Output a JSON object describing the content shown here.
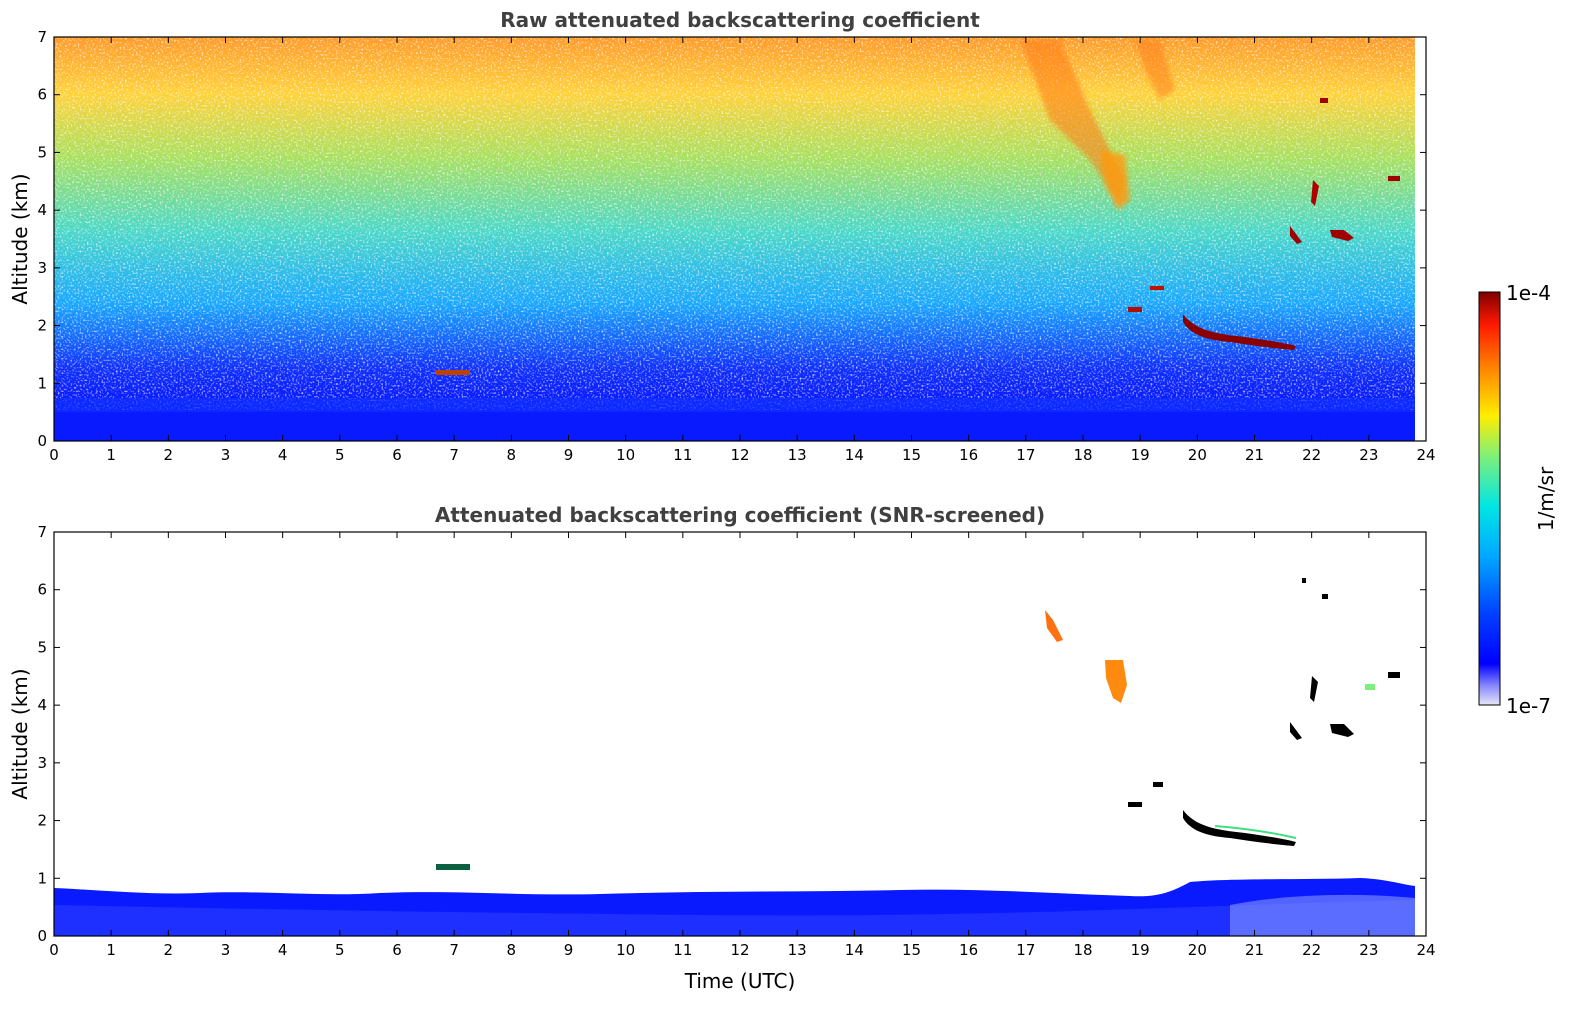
{
  "chart_data": [
    {
      "type": "heatmap",
      "title": "Raw attenuated backscattering coefficient",
      "xlabel": "",
      "ylabel": "Altitude (km)",
      "xlim": [
        0,
        24
      ],
      "ylim": [
        0,
        7
      ],
      "xticks": [
        "0",
        "1",
        "2",
        "3",
        "4",
        "5",
        "6",
        "7",
        "8",
        "9",
        "10",
        "11",
        "12",
        "13",
        "14",
        "15",
        "16",
        "17",
        "18",
        "19",
        "20",
        "21",
        "22",
        "23",
        "24"
      ],
      "yticks": [
        "0",
        "1",
        "2",
        "3",
        "4",
        "5",
        "6",
        "7"
      ],
      "screened": false,
      "features": [
        {
          "kind": "boundary_layer",
          "x": [
            0,
            23.8
          ],
          "y": [
            0,
            0.55
          ],
          "level": 0.06
        },
        {
          "kind": "cloud_layer",
          "x": [
            19.8,
            21.7
          ],
          "y": [
            1.6,
            2.15
          ],
          "level": 1.0
        },
        {
          "kind": "cloud_patch",
          "x": [
            21.7,
            22.7
          ],
          "y": [
            3.4,
            4.5
          ],
          "level": 0.97
        },
        {
          "kind": "fall_streak",
          "x": [
            17.3,
            19.6
          ],
          "y": [
            4.0,
            7.0
          ],
          "level": 0.75
        },
        {
          "kind": "small_cloud",
          "x": [
            6.7,
            7.3
          ],
          "y": [
            1.1,
            1.25
          ],
          "level": 0.8
        }
      ]
    },
    {
      "type": "heatmap",
      "title": "Attenuated backscattering coefficient (SNR-screened)",
      "xlabel": "Time (UTC)",
      "ylabel": "Altitude (km)",
      "xlim": [
        0,
        24
      ],
      "ylim": [
        0,
        7
      ],
      "xticks": [
        "0",
        "1",
        "2",
        "3",
        "4",
        "5",
        "6",
        "7",
        "8",
        "9",
        "10",
        "11",
        "12",
        "13",
        "14",
        "15",
        "16",
        "17",
        "18",
        "19",
        "20",
        "21",
        "22",
        "23",
        "24"
      ],
      "yticks": [
        "0",
        "1",
        "2",
        "3",
        "4",
        "5",
        "6",
        "7"
      ],
      "screened": true,
      "features": [
        {
          "kind": "boundary_layer",
          "x": [
            0,
            23.8
          ],
          "y": [
            0,
            0.8
          ],
          "level": 0.06
        },
        {
          "kind": "cloud_layer",
          "x": [
            19.8,
            21.7
          ],
          "y": [
            1.6,
            2.15
          ],
          "level": "saturated"
        },
        {
          "kind": "virga",
          "x": [
            18.5,
            18.7
          ],
          "y": [
            4.05,
            4.8
          ],
          "level": 0.78
        },
        {
          "kind": "virga",
          "x": [
            17.4,
            17.7
          ],
          "y": [
            5.1,
            5.7
          ],
          "level": 0.82
        }
      ]
    }
  ],
  "colorbar": {
    "label": "1/m/sr",
    "max_label": "1e-4",
    "min_label": "1e-7",
    "colormap": "jet",
    "colors": [
      "#e6e6f7",
      "#0000ff",
      "#00e5e5",
      "#ffee00",
      "#ff3300",
      "#800000"
    ]
  }
}
